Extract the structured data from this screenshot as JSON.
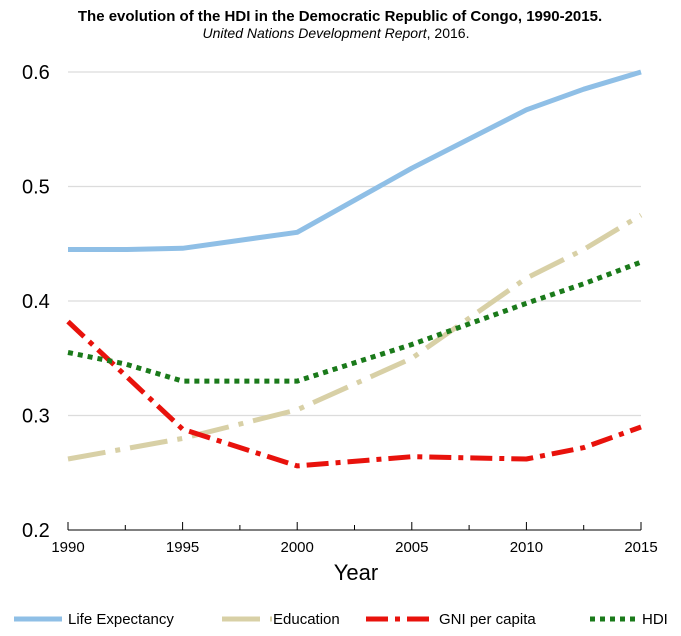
{
  "chart_data": {
    "type": "line",
    "title": "The evolution of the HDI in the Democratic Republic of Congo, 1990-2015.",
    "subtitle_italic": "United Nations Development Report",
    "subtitle_rest": ", 2016.",
    "xlabel": "Year",
    "ylabel": "",
    "xlim": [
      1990,
      2015
    ],
    "ylim": [
      0.2,
      0.6
    ],
    "xticks": [
      1990,
      1995,
      2000,
      2005,
      2010,
      2015
    ],
    "yticks": [
      "0.2",
      "0.3",
      "0.4",
      "0.5",
      "0.6"
    ],
    "grid": "horizontal",
    "legend_position": "bottom",
    "x": [
      1990,
      1995,
      2000,
      2005,
      2010,
      2015
    ],
    "series": [
      {
        "name": "Life Expectancy",
        "color": "#8fbfe6",
        "style": "solid",
        "points": [
          [
            1990,
            0.445
          ],
          [
            1992.5,
            0.445
          ],
          [
            1995,
            0.446
          ],
          [
            2000,
            0.46
          ],
          [
            2005,
            0.516
          ],
          [
            2010,
            0.567
          ],
          [
            2012.5,
            0.585
          ],
          [
            2015,
            0.6
          ]
        ]
      },
      {
        "name": "Education",
        "color": "#d8d0a6",
        "style": "dashdot-long",
        "points": [
          [
            1990,
            0.262
          ],
          [
            1995,
            0.28
          ],
          [
            2000,
            0.305
          ],
          [
            2005,
            0.35
          ],
          [
            2007.5,
            0.385
          ],
          [
            2010,
            0.42
          ],
          [
            2012.5,
            0.445
          ],
          [
            2015,
            0.475
          ]
        ]
      },
      {
        "name": "GNI per capita",
        "color": "#e8120c",
        "style": "dashdot",
        "points": [
          [
            1990,
            0.382
          ],
          [
            1992.5,
            0.335
          ],
          [
            1995,
            0.288
          ],
          [
            2000,
            0.256
          ],
          [
            2005,
            0.264
          ],
          [
            2010,
            0.262
          ],
          [
            2012.5,
            0.272
          ],
          [
            2015,
            0.29
          ]
        ]
      },
      {
        "name": "HDI",
        "color": "#1a7a1a",
        "style": "dotted",
        "points": [
          [
            1990,
            0.355
          ],
          [
            1992.5,
            0.345
          ],
          [
            1995,
            0.33
          ],
          [
            2000,
            0.33
          ],
          [
            2005,
            0.362
          ],
          [
            2010,
            0.398
          ],
          [
            2012.5,
            0.415
          ],
          [
            2015,
            0.434
          ]
        ]
      }
    ]
  }
}
